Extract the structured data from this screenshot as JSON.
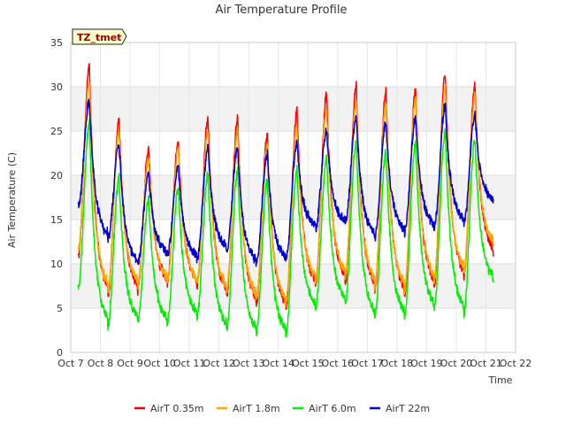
{
  "chart_data": {
    "type": "line",
    "title": "Air Temperature Profile",
    "site_label": "TZ_tmet",
    "xlabel": "Time",
    "ylabel": "Air Temperature (C)",
    "x_range": [
      "Oct 7",
      "Oct 22"
    ],
    "ylim": [
      0,
      35
    ],
    "x_ticks": [
      "Oct 7",
      "Oct 8",
      "Oct 9",
      "Oct 10",
      "Oct 11",
      "Oct 12",
      "Oct 13",
      "Oct 14",
      "Oct 15",
      "Oct 16",
      "Oct 17",
      "Oct 18",
      "Oct 19",
      "Oct 20",
      "Oct 21",
      "Oct 22"
    ],
    "y_ticks": [
      "0",
      "5",
      "10",
      "15",
      "20",
      "25",
      "30",
      "35"
    ],
    "grid": true,
    "legend_position": "bottom",
    "data_range": {
      "start": "Oct 7 06:00",
      "end": "Oct 21 06:00"
    },
    "daily_profile_note": "Daily minimum near 06:00, daily maximum near 15:00",
    "series": [
      {
        "name": "AirT 0.35m",
        "color": "#ff0000",
        "daily_min": [
          10.8,
          6.5,
          7.0,
          7.8,
          7.5,
          6.5,
          5.5,
          5.0,
          7.5,
          8.0,
          7.0,
          6.5,
          7.5,
          8.5,
          11.0
        ],
        "daily_max": [
          32.3,
          26.3,
          23.0,
          23.8,
          26.3,
          26.4,
          24.5,
          27.2,
          29.0,
          30.0,
          29.5,
          29.8,
          31.5,
          30.2
        ]
      },
      {
        "name": "AirT 1.8m",
        "color": "#ffa500",
        "daily_min": [
          11.5,
          7.0,
          7.5,
          8.0,
          7.8,
          7.0,
          6.0,
          5.5,
          8.0,
          8.5,
          7.5,
          7.0,
          8.0,
          9.0,
          12.0
        ],
        "daily_max": [
          30.5,
          25.0,
          22.0,
          23.0,
          25.0,
          25.0,
          23.5,
          25.5,
          27.5,
          28.5,
          28.0,
          28.5,
          30.0,
          29.0
        ]
      },
      {
        "name": "AirT 6.0m",
        "color": "#00ee00",
        "daily_min": [
          7.5,
          3.0,
          3.5,
          3.5,
          4.0,
          2.7,
          2.2,
          2.0,
          5.0,
          5.5,
          4.0,
          4.0,
          5.0,
          4.5,
          8.0
        ],
        "daily_max": [
          25.8,
          19.8,
          17.2,
          18.5,
          20.0,
          20.5,
          19.5,
          20.5,
          22.0,
          23.8,
          22.8,
          23.8,
          25.0,
          24.0
        ]
      },
      {
        "name": "AirT 22m",
        "color": "#0000cc",
        "daily_min": [
          16.5,
          12.8,
          10.0,
          11.0,
          10.5,
          11.5,
          10.0,
          10.5,
          14.0,
          14.5,
          13.0,
          13.5,
          14.0,
          14.5,
          17.0
        ],
        "daily_max": [
          28.3,
          23.5,
          20.0,
          21.0,
          23.0,
          23.0,
          22.3,
          23.5,
          25.0,
          26.5,
          25.8,
          26.5,
          27.8,
          26.8
        ]
      }
    ]
  }
}
